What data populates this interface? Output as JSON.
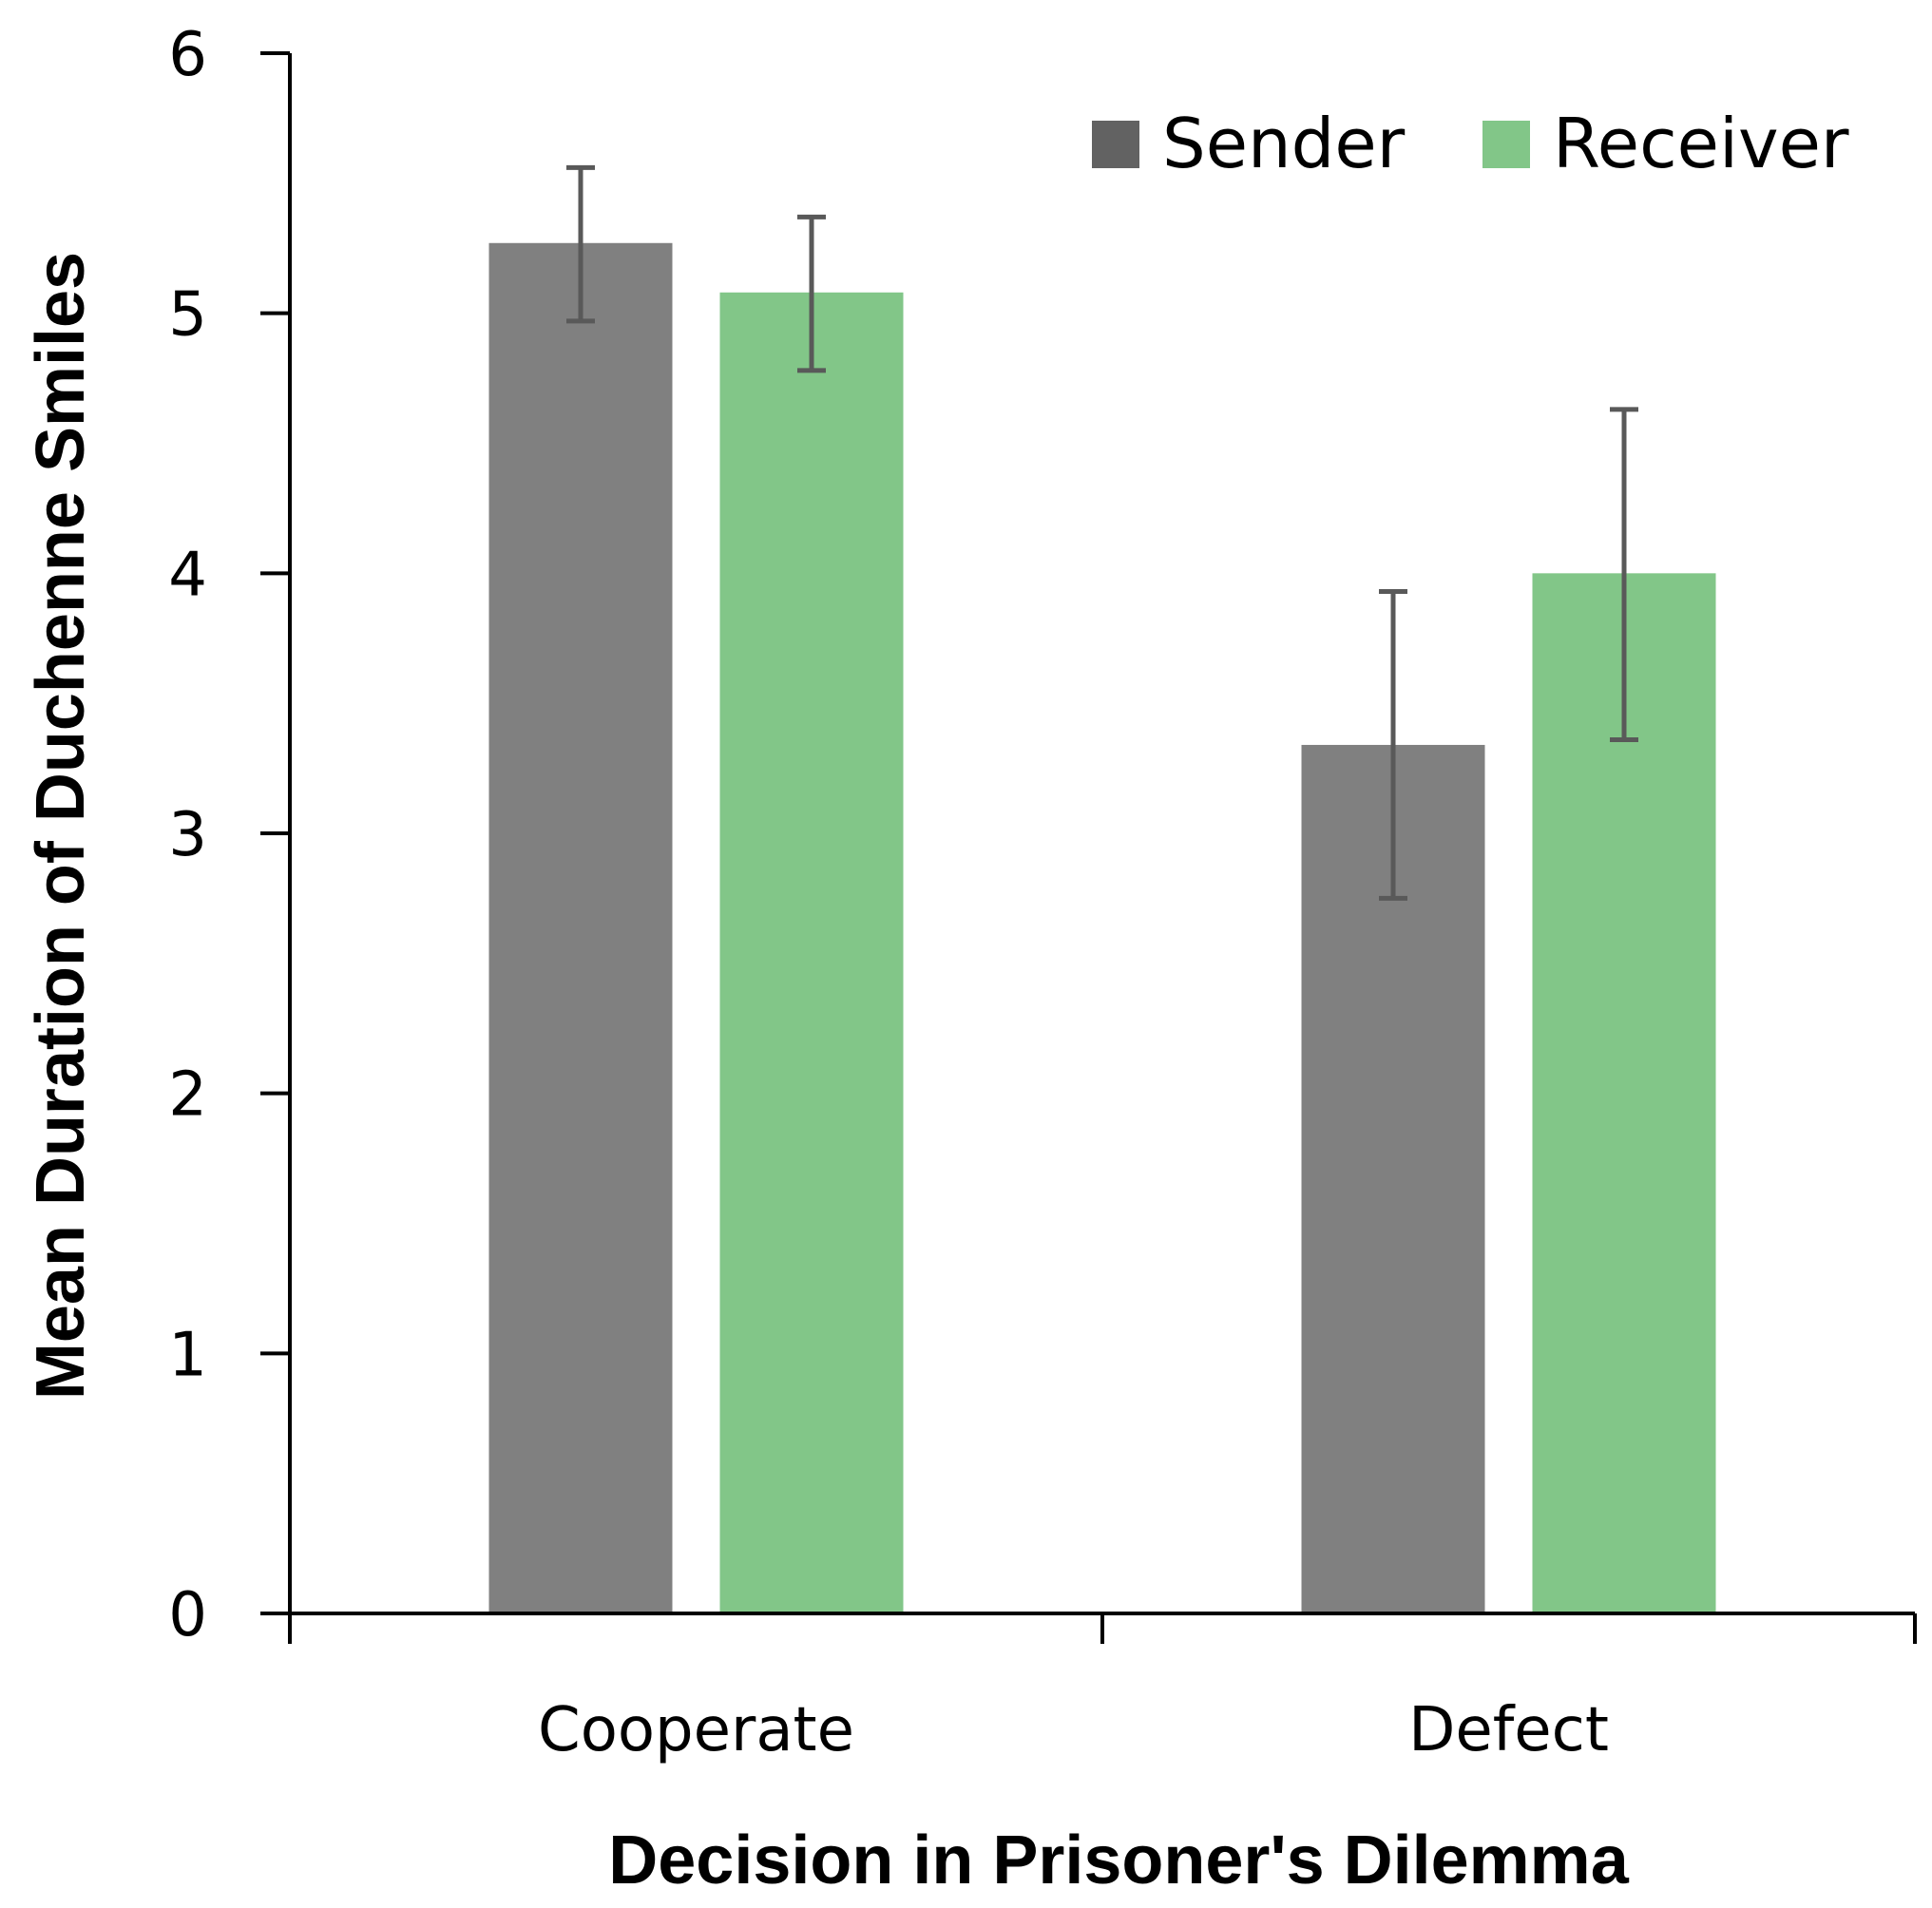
{
  "chart_data": {
    "type": "bar",
    "title": "",
    "xlabel": "Decision in Prisoner's Dilemma",
    "ylabel": "Mean Duration of Duchenne Smiles",
    "ylim": [
      0,
      6
    ],
    "yticks": [
      0,
      1,
      2,
      3,
      4,
      5,
      6
    ],
    "categories": [
      "Cooperate",
      "Defect"
    ],
    "series": [
      {
        "name": "Sender",
        "values": [
          5.27,
          3.34
        ],
        "error_low": [
          4.97,
          2.75
        ],
        "error_high": [
          5.56,
          3.93
        ],
        "color": "#808080",
        "legend_color": "#626262"
      },
      {
        "name": "Receiver",
        "values": [
          5.08,
          4.0
        ],
        "error_low": [
          4.78,
          3.36
        ],
        "error_high": [
          5.37,
          4.63
        ],
        "color": "#82c688",
        "legend_color": "#82c688"
      }
    ],
    "legend_position": "top-right",
    "grid": false
  }
}
